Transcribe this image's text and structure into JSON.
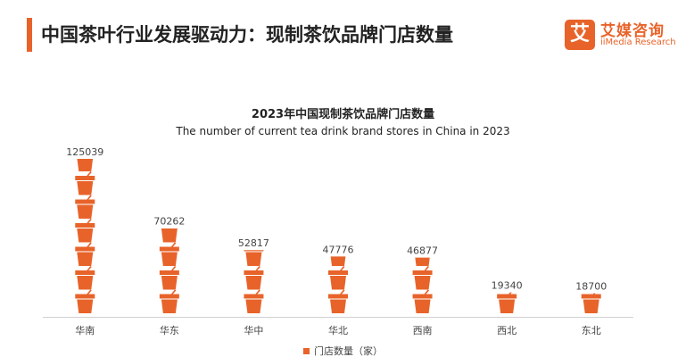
{
  "header": {
    "title": "中国茶叶行业发展驱动力：现制茶饮品牌门店数量"
  },
  "logo": {
    "mark": "艾",
    "name_cn": "艾媒咨询",
    "name_en": "iiMedia Research"
  },
  "chart_data": {
    "type": "bar",
    "title": "2023年中国现制茶饮品牌门店数量",
    "subtitle": "The number of current tea drink brand stores in China in 2023",
    "categories": [
      "华南",
      "华东",
      "华中",
      "华北",
      "西南",
      "西北",
      "东北"
    ],
    "series": [
      {
        "name": "门店数量（家）",
        "values": [
          125039,
          70262,
          52817,
          47776,
          46877,
          19340,
          18700
        ],
        "color": "#e8632a"
      }
    ],
    "icon": "tea-cup-icon",
    "ylim": [
      0,
      125039
    ],
    "grid": false,
    "legend_position": "bottom"
  }
}
